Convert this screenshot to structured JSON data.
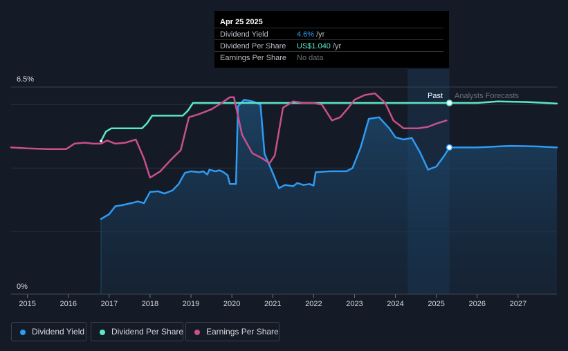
{
  "tooltip": {
    "date": "Apr 25 2025",
    "rows": [
      {
        "label": "Dividend Yield",
        "value": "4.6%",
        "unit": "/yr",
        "color": "#2e9cf4"
      },
      {
        "label": "Dividend Per Share",
        "value": "US$1.040",
        "unit": "/yr",
        "color": "#5be8c8"
      },
      {
        "label": "Earnings Per Share",
        "value": "No data",
        "unit": "",
        "color": "#6b717c"
      }
    ]
  },
  "labels": {
    "past": "Past",
    "forecast": "Analysts Forecasts"
  },
  "legend": [
    {
      "label": "Dividend Yield",
      "color": "#2e9cf4"
    },
    {
      "label": "Dividend Per Share",
      "color": "#5be8c8"
    },
    {
      "label": "Earnings Per Share",
      "color": "#c8508e"
    }
  ],
  "chart_data": {
    "type": "line",
    "xlim": [
      2014.6,
      2027.95
    ],
    "ylim": [
      0,
      6.5
    ],
    "y_tick_labels": [
      "0%",
      "6.5%"
    ],
    "y_gridlines": [
      0,
      1.95,
      3.95,
      5.95
    ],
    "x_ticks": [
      2015,
      2016,
      2017,
      2018,
      2019,
      2020,
      2021,
      2022,
      2023,
      2024,
      2025,
      2026,
      2027
    ],
    "past_end": 2025.32,
    "forecast_band_start": 2024.3,
    "grid": true,
    "legend_position": "bottom-left",
    "series": [
      {
        "name": "Dividend Yield",
        "unit": "%",
        "color": "#2e9cf4",
        "area": true,
        "points": [
          [
            2016.8,
            2.35
          ],
          [
            2017.0,
            2.5
          ],
          [
            2017.15,
            2.75
          ],
          [
            2017.3,
            2.78
          ],
          [
            2017.55,
            2.85
          ],
          [
            2017.7,
            2.9
          ],
          [
            2017.85,
            2.85
          ],
          [
            2018.0,
            3.2
          ],
          [
            2018.2,
            3.22
          ],
          [
            2018.35,
            3.15
          ],
          [
            2018.55,
            3.25
          ],
          [
            2018.7,
            3.45
          ],
          [
            2018.85,
            3.8
          ],
          [
            2019.0,
            3.85
          ],
          [
            2019.2,
            3.82
          ],
          [
            2019.3,
            3.85
          ],
          [
            2019.4,
            3.75
          ],
          [
            2019.45,
            3.9
          ],
          [
            2019.6,
            3.85
          ],
          [
            2019.7,
            3.88
          ],
          [
            2019.8,
            3.82
          ],
          [
            2019.9,
            3.72
          ],
          [
            2019.95,
            3.45
          ],
          [
            2020.1,
            3.45
          ],
          [
            2020.15,
            5.9
          ],
          [
            2020.3,
            6.1
          ],
          [
            2020.5,
            6.05
          ],
          [
            2020.7,
            5.95
          ],
          [
            2020.8,
            4.4
          ],
          [
            2021.0,
            3.8
          ],
          [
            2021.15,
            3.32
          ],
          [
            2021.3,
            3.42
          ],
          [
            2021.5,
            3.38
          ],
          [
            2021.6,
            3.48
          ],
          [
            2021.75,
            3.42
          ],
          [
            2021.9,
            3.45
          ],
          [
            2022.0,
            3.4
          ],
          [
            2022.05,
            3.82
          ],
          [
            2022.4,
            3.85
          ],
          [
            2022.8,
            3.85
          ],
          [
            2022.95,
            3.95
          ],
          [
            2023.15,
            4.6
          ],
          [
            2023.35,
            5.5
          ],
          [
            2023.6,
            5.55
          ],
          [
            2023.85,
            5.2
          ],
          [
            2024.0,
            4.92
          ],
          [
            2024.2,
            4.85
          ],
          [
            2024.4,
            4.9
          ],
          [
            2024.6,
            4.45
          ],
          [
            2024.8,
            3.9
          ],
          [
            2025.0,
            4.0
          ],
          [
            2025.2,
            4.35
          ],
          [
            2025.32,
            4.6
          ],
          [
            2026.0,
            4.6
          ],
          [
            2026.8,
            4.65
          ],
          [
            2027.5,
            4.63
          ],
          [
            2027.95,
            4.6
          ]
        ]
      },
      {
        "name": "Dividend Per Share",
        "unit": "US$",
        "color": "#5be8c8",
        "area": false,
        "points": [
          [
            2016.8,
            4.8
          ],
          [
            2016.92,
            5.1
          ],
          [
            2017.05,
            5.2
          ],
          [
            2017.5,
            5.2
          ],
          [
            2017.8,
            5.2
          ],
          [
            2017.92,
            5.35
          ],
          [
            2018.05,
            5.6
          ],
          [
            2018.5,
            5.6
          ],
          [
            2018.8,
            5.6
          ],
          [
            2018.92,
            5.75
          ],
          [
            2019.05,
            6.0
          ],
          [
            2019.5,
            6.0
          ],
          [
            2024.5,
            6.0
          ],
          [
            2025.32,
            6.0
          ],
          [
            2026.0,
            6.0
          ],
          [
            2026.5,
            6.05
          ],
          [
            2027.2,
            6.03
          ],
          [
            2027.95,
            5.98
          ]
        ]
      },
      {
        "name": "Earnings Per Share",
        "unit": "US$",
        "color": "#c8508e",
        "area": false,
        "points": [
          [
            2014.6,
            4.6
          ],
          [
            2015.0,
            4.57
          ],
          [
            2015.5,
            4.55
          ],
          [
            2015.95,
            4.55
          ],
          [
            2016.15,
            4.72
          ],
          [
            2016.4,
            4.75
          ],
          [
            2016.6,
            4.72
          ],
          [
            2016.8,
            4.72
          ],
          [
            2016.95,
            4.82
          ],
          [
            2017.15,
            4.72
          ],
          [
            2017.4,
            4.75
          ],
          [
            2017.65,
            4.85
          ],
          [
            2017.85,
            4.25
          ],
          [
            2018.0,
            3.65
          ],
          [
            2018.25,
            3.85
          ],
          [
            2018.5,
            4.2
          ],
          [
            2018.75,
            4.52
          ],
          [
            2018.95,
            5.55
          ],
          [
            2019.2,
            5.65
          ],
          [
            2019.5,
            5.8
          ],
          [
            2019.75,
            6.0
          ],
          [
            2019.95,
            6.18
          ],
          [
            2020.05,
            6.18
          ],
          [
            2020.25,
            5.0
          ],
          [
            2020.5,
            4.42
          ],
          [
            2020.75,
            4.25
          ],
          [
            2020.92,
            4.1
          ],
          [
            2021.05,
            4.35
          ],
          [
            2021.25,
            5.85
          ],
          [
            2021.5,
            6.05
          ],
          [
            2021.75,
            6.0
          ],
          [
            2022.0,
            6.0
          ],
          [
            2022.2,
            5.95
          ],
          [
            2022.45,
            5.45
          ],
          [
            2022.65,
            5.55
          ],
          [
            2022.85,
            5.85
          ],
          [
            2023.0,
            6.1
          ],
          [
            2023.25,
            6.25
          ],
          [
            2023.5,
            6.3
          ],
          [
            2023.75,
            6.0
          ],
          [
            2023.95,
            5.45
          ],
          [
            2024.2,
            5.2
          ],
          [
            2024.55,
            5.2
          ],
          [
            2024.8,
            5.25
          ],
          [
            2025.0,
            5.35
          ],
          [
            2025.25,
            5.45
          ]
        ]
      }
    ]
  }
}
